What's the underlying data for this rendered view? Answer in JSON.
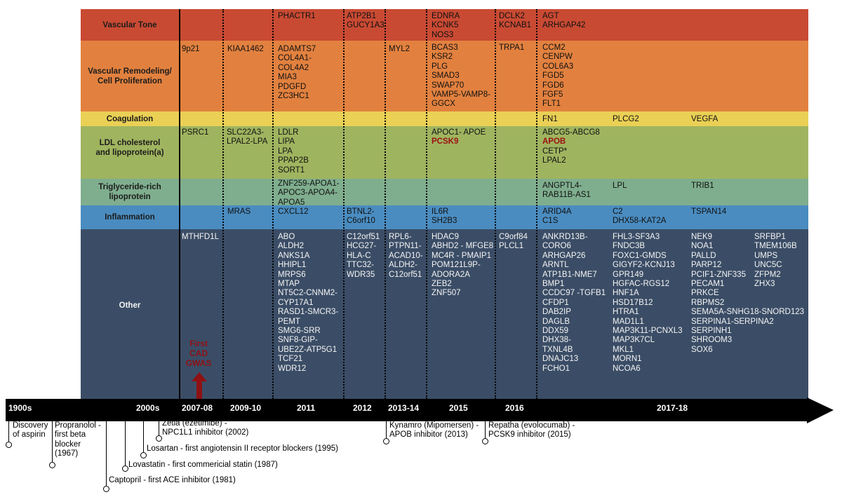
{
  "colors": {
    "vascular_tone": "#c94a33",
    "vascular_remodeling": "#e2813f",
    "coagulation": "#ead055",
    "ldl": "#9fb45f",
    "triglyceride": "#7fae8e",
    "inflammation": "#4a8cc0",
    "other": "#3b4d66",
    "timeline": "#000000",
    "red_gene": "#9b0f12"
  },
  "categories": [
    {
      "key": "vascular_tone",
      "label": "Vascular Tone"
    },
    {
      "key": "vascular_remodeling",
      "label": "Vascular Remodeling/\nCell Proliferation"
    },
    {
      "key": "coagulation",
      "label": "Coagulation"
    },
    {
      "key": "ldl",
      "label": "LDL cholesterol\nand lipoprotein(a)"
    },
    {
      "key": "triglyceride",
      "label": "Triglyceride-rich\nlipoprotein"
    },
    {
      "key": "inflammation",
      "label": "Inflammation"
    },
    {
      "key": "other",
      "label": "Other"
    }
  ],
  "genes": {
    "vascular_tone": {
      "2011": [
        "PHACTR1"
      ],
      "2012": [
        "ATP2B1",
        "GUCY1A3"
      ],
      "2015": [
        "EDNRA",
        "KCNK5",
        "NOS3"
      ],
      "2016": [
        "DCLK2",
        "KCNAB1"
      ],
      "2017_18_a": [
        "AGT",
        "ARHGAP42"
      ]
    },
    "vascular_remodeling": {
      "2007_08": [
        "9p21"
      ],
      "2009_10": [
        "KIAA1462"
      ],
      "2011": [
        "ADAMTS7",
        "COL4A1-",
        "COL4A2",
        "MIA3",
        "PDGFD",
        "ZC3HC1"
      ],
      "2013_14": [
        "MYL2"
      ],
      "2015": [
        "BCAS3",
        "KSR2",
        "PLG",
        "SMAD3",
        "SWAP70",
        "VAMP5-VAMP8-",
        "GGCX"
      ],
      "2016": [
        "TRPA1"
      ],
      "2017_18_a": [
        "CCM2",
        "CENPW",
        "COL6A3",
        "FGD5",
        "FGD6",
        "FGF5",
        "FLT1"
      ]
    },
    "coagulation": {
      "2017_18_a": [
        "FN1"
      ],
      "2017_18_b": [
        "PLCG2"
      ],
      "2017_18_c": [
        "VEGFA"
      ]
    },
    "ldl": {
      "2007_08": [
        "PSRC1"
      ],
      "2009_10": [
        "SLC22A3-",
        "LPAL2-LPA"
      ],
      "2011": [
        "LDLR",
        "LIPA",
        "LPA",
        "PPAP2B",
        "SORT1"
      ],
      "2015": [
        "APOC1- APOE",
        "PCSK9"
      ],
      "2017_18_a": [
        "ABCG5-ABCG8",
        "APOB",
        "CETP*",
        "LPAL2"
      ]
    },
    "triglyceride": {
      "2011": [
        "ZNF259-APOA1-",
        "APOC3-APOA4-",
        "APOA5"
      ],
      "2017_18_a": [
        "ANGPTL4-",
        "RAB11B-AS1"
      ],
      "2017_18_b": [
        "LPL"
      ],
      "2017_18_c": [
        "TRIB1"
      ]
    },
    "inflammation": {
      "2009_10": [
        "MRAS"
      ],
      "2011": [
        "CXCL12"
      ],
      "2012": [
        "BTNL2-",
        "C6orf10"
      ],
      "2015": [
        "IL6R",
        "SH2B3"
      ],
      "2017_18_a": [
        "ARID4A",
        "C1S"
      ],
      "2017_18_b": [
        "C2",
        "DHX58-KAT2A"
      ],
      "2017_18_c": [
        "TSPAN14"
      ]
    },
    "other": {
      "2007_08": [
        "MTHFD1L"
      ],
      "2011": [
        "ABO",
        "ALDH2",
        "ANKS1A",
        "HHIPL1",
        "MRPS6",
        "MTAP",
        "NT5C2-CNNM2-",
        "CYP17A1",
        "RASD1-SMCR3-",
        "PEMT",
        "SMG6-SRR",
        "SNF8-GIP-",
        "UBE2Z-ATP5G1",
        "TCF21",
        "WDR12"
      ],
      "2012": [
        "C12orf51",
        "HCG27-",
        "HLA-C",
        "TTC32-",
        "WDR35"
      ],
      "2013_14": [
        "RPL6-",
        "PTPN11-",
        "ACAD10-",
        "ALDH2-",
        "C12orf51"
      ],
      "2015": [
        "HDAC9",
        "ABHD2 - MFGE8",
        "MC4R - PMAIP1",
        "POM121L9P-",
        "ADORA2A",
        "ZEB2",
        "ZNF507"
      ],
      "2016": [
        "C9orf84",
        "PLCL1"
      ],
      "2017_18_a": [
        "ANKRD13B-",
        "CORO6",
        "ARHGAP26",
        "ARNTL",
        "ATP1B1-NME7",
        "BMP1",
        "CCDC97 -TGFB1",
        "CFDP1",
        "DAB2IP",
        "DAGLB",
        "DDX59",
        "DHX38-",
        "TXNL4B",
        "DNAJC13",
        "FCHO1"
      ],
      "2017_18_b": [
        "FHL3-SF3A3",
        "FNDC3B",
        "FOXC1-GMDS",
        "GIGYF2-KCNJ13",
        "GPR149",
        "HGFAC-RGS12",
        "HNF1A",
        "HSD17B12",
        "HTRA1",
        "MAD1L1",
        "MAP3K11-PCNXL3",
        "MAP3K7CL",
        "MKL1",
        "MORN1",
        "NCOA6"
      ],
      "2017_18_c": [
        "NEK9",
        "NOA1",
        "PALLD",
        "PARP12",
        "PCIF1-ZNF335",
        "PECAM1",
        "PRKCE",
        "RBPMS2",
        "SEMA5A-SNHG18-SNORD123",
        "SERPINA1-SERPINA2",
        "SERPINH1",
        "SHROOM3",
        "SOX6"
      ],
      "2017_18_d": [
        "SRFBP1",
        "TMEM106B",
        "UMPS",
        "UNC5C",
        "ZFPM2",
        "ZHX3"
      ]
    }
  },
  "red_genes": [
    "PCSK9",
    "APOB"
  ],
  "first_gwas": "First\nCAD\nGWAS",
  "timeline": {
    "labels": {
      "1900s": "1900s",
      "2000s": "2000s",
      "2007_08": "2007-08",
      "2009_10": "2009-10",
      "2011": "2011",
      "2012": "2012",
      "2013_14": "2013-14",
      "2015": "2015",
      "2016": "2016",
      "2017_18": "2017-18"
    }
  },
  "drugs": [
    {
      "key": "aspirin",
      "text": "Discovery\nof aspirin"
    },
    {
      "key": "propranolol",
      "text": "Propranolol -\nfirst beta\nblocker\n(1967)"
    },
    {
      "key": "captopril",
      "text": "Captopril - first ACE inhibitor (1981)"
    },
    {
      "key": "lovastatin",
      "text": "Lovastatin - first commericial statin (1987)"
    },
    {
      "key": "losartan",
      "text": "Losartan - first angiotensin II receptor blockers (1995)"
    },
    {
      "key": "zetia",
      "text": "Zetia (ezetimibe) -\nNPC1L1 inhibitor (2002)"
    },
    {
      "key": "kynamro",
      "text": "Kynamro (Mipomersen) -\nAPOB inhibitor (2013)"
    },
    {
      "key": "repatha",
      "text": "Repatha (evolocumab) -\nPCSK9 inhibitor (2015)"
    }
  ]
}
